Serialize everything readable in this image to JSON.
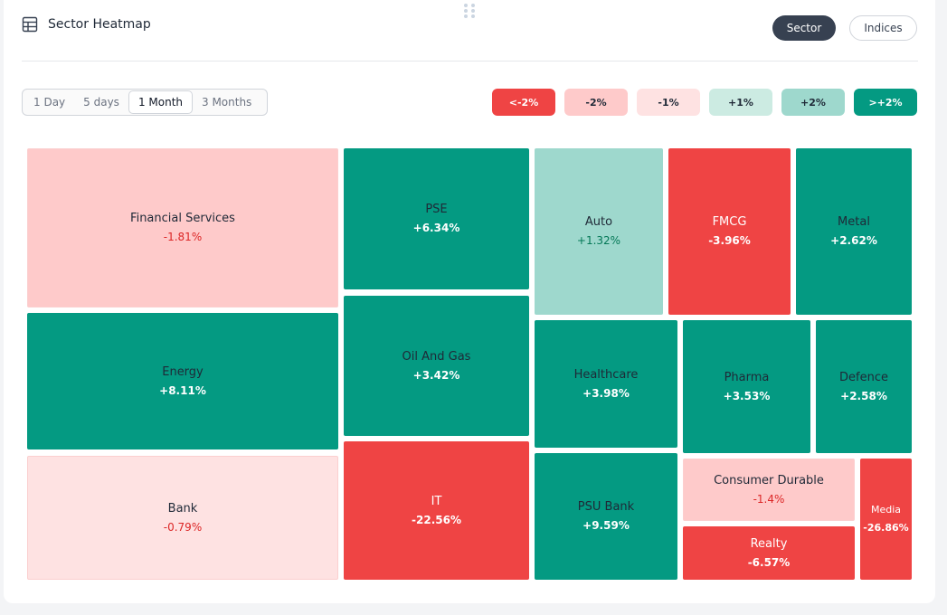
{
  "header": {
    "title": "Sector Heatmap",
    "toggle": {
      "sector_label": "Sector",
      "indices_label": "Indices",
      "selected": "Sector"
    }
  },
  "time_ranges": {
    "options": [
      "1 Day",
      "5 days",
      "1 Month",
      "3 Months"
    ],
    "selected": "1 Month"
  },
  "legend": [
    {
      "label": "<-2%",
      "bg": "#ef4444",
      "fg": "#ffffff"
    },
    {
      "label": "-2%",
      "bg": "#fecaca",
      "fg": "#1f2937"
    },
    {
      "label": "-1%",
      "bg": "#fee2e2",
      "fg": "#1f2937"
    },
    {
      "label": "+1%",
      "bg": "#ccebe2",
      "fg": "#1f2937"
    },
    {
      "label": "+2%",
      "bg": "#9ed8cd",
      "fg": "#1f2937"
    },
    {
      "label": ">+2%",
      "bg": "#049a82",
      "fg": "#ffffff"
    }
  ],
  "colors": {
    "strong_red": "#ef4444",
    "light_red": "#fecaca",
    "lighter_red": "#fee2e2",
    "light_green": "#9ed8cd",
    "strong_green": "#049a82"
  },
  "sectors": [
    {
      "name": "Financial Services",
      "change": "-1.81%"
    },
    {
      "name": "Energy",
      "change": "+8.11%"
    },
    {
      "name": "Bank",
      "change": "-0.79%"
    },
    {
      "name": "PSE",
      "change": "+6.34%"
    },
    {
      "name": "Oil And Gas",
      "change": "+3.42%"
    },
    {
      "name": "IT",
      "change": "-22.56%"
    },
    {
      "name": "Auto",
      "change": "+1.32%"
    },
    {
      "name": "FMCG",
      "change": "-3.96%"
    },
    {
      "name": "Metal",
      "change": "+2.62%"
    },
    {
      "name": "Healthcare",
      "change": "+3.98%"
    },
    {
      "name": "Pharma",
      "change": "+3.53%"
    },
    {
      "name": "Defence",
      "change": "+2.58%"
    },
    {
      "name": "PSU Bank",
      "change": "+9.59%"
    },
    {
      "name": "Consumer Durable",
      "change": "-1.4%"
    },
    {
      "name": "Realty",
      "change": "-6.57%"
    },
    {
      "name": "Media",
      "change": "-26.86%"
    }
  ]
}
